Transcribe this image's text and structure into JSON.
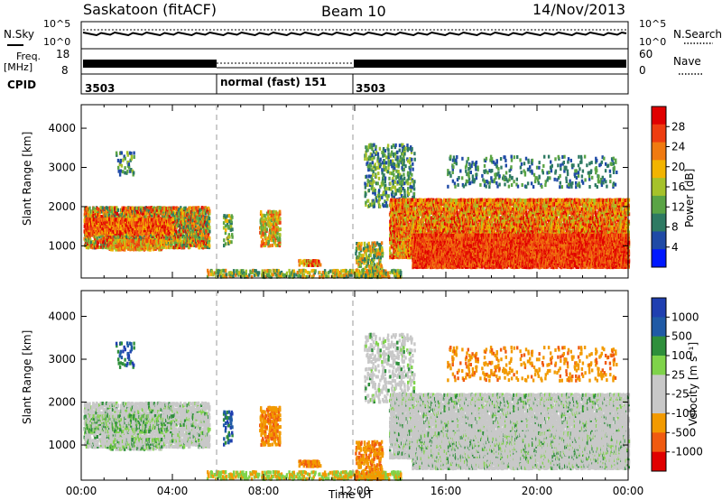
{
  "header": {
    "station": "Saskatoon (fitACF)",
    "beam": "Beam 10",
    "date": "14/Nov/2013"
  },
  "noise_panel": {
    "left_label": "N.Sky",
    "right_label": "N.Search",
    "ticks": [
      "10^5",
      "10^0"
    ]
  },
  "freq_panel": {
    "left_label_1": "Freq.",
    "left_label_2": "[MHz]",
    "left_ticks": [
      "18",
      "8"
    ],
    "right_label": "Nave",
    "right_ticks": [
      "60",
      "0"
    ]
  },
  "cpid_panel": {
    "label": "CPID",
    "segments": [
      "3503",
      "normal (fast) 151",
      "3503"
    ]
  },
  "colors": {
    "power_scale": [
      "#0018ff",
      "#1f4aa6",
      "#2e7a63",
      "#5aa445",
      "#a6c22a",
      "#f2b400",
      "#f07a10",
      "#ee3d10",
      "#e00000"
    ],
    "velocity_scale": [
      "#e00000",
      "#f05a10",
      "#f29a00",
      "#c8c8c8",
      "#c8c8c8",
      "#7fd34a",
      "#2e8f3b",
      "#1f5aa6",
      "#1f3fb0"
    ],
    "ground_scatter": "#c8c8c8"
  },
  "chart_data": [
    {
      "type": "heatmap",
      "title": "",
      "xlabel": "",
      "ylabel": "Slant Range [km]",
      "xlim": [
        "00:00",
        "24:00"
      ],
      "ylim": [
        180,
        4600
      ],
      "y_ticks": [
        "1000",
        "2000",
        "3000",
        "4000"
      ],
      "colorbar_label": "Power [dB]",
      "colorbar_ticks": [
        "4",
        "8",
        "12",
        "16",
        "20",
        "24",
        "28"
      ]
    },
    {
      "type": "heatmap",
      "title": "",
      "xlabel": "Time UT",
      "ylabel": "Slant Range [km]",
      "xlim": [
        "00:00",
        "24:00"
      ],
      "ylim": [
        180,
        4600
      ],
      "x_ticks": [
        "00:00",
        "04:00",
        "08:00",
        "12:00",
        "16:00",
        "20:00",
        "00:00"
      ],
      "y_ticks": [
        "1000",
        "2000",
        "3000",
        "4000"
      ],
      "colorbar_label": "Velocity [m s⁻¹]",
      "colorbar_ticks": [
        "1000",
        "500",
        "100",
        "25",
        "-25",
        "-100",
        "-500",
        "-1000"
      ]
    }
  ]
}
